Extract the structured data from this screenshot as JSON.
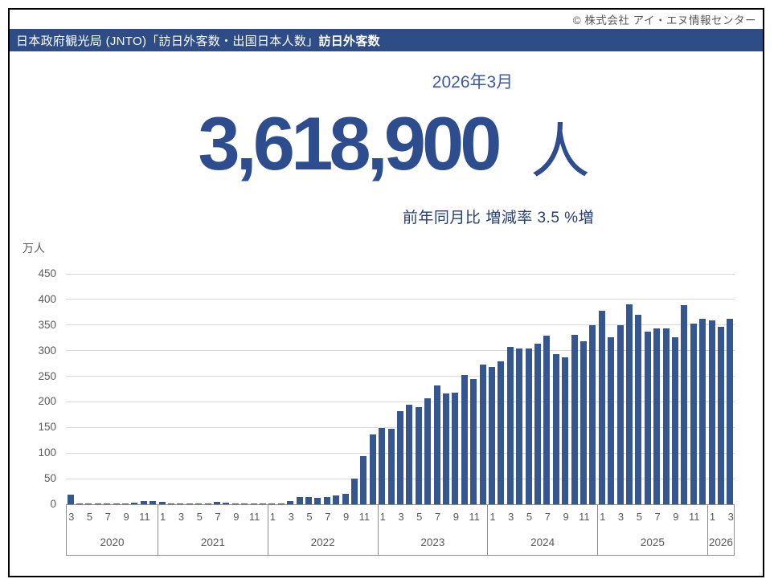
{
  "window": {
    "copyright": "© 株式会社 アイ・エヌ情報センター"
  },
  "header": {
    "source_label": "日本政府観光局 (JNTO)「訪日外客数・出国日本人数」",
    "metric_label": "訪日外客数"
  },
  "headline": {
    "period": "2026年3月",
    "value": "3,618,900",
    "unit": "人",
    "comparison": "前年同月比 増減率 3.5 %増"
  },
  "chart_data": {
    "type": "bar",
    "title": "訪日外客数",
    "ylabel": "万人",
    "ylim": [
      0,
      450
    ],
    "ytick_interval": 50,
    "yticks": [
      0,
      50,
      100,
      150,
      200,
      250,
      300,
      350,
      400,
      450
    ],
    "grid": true,
    "bar_color": "#35568f",
    "month_ticks_shown": [
      1,
      3,
      5,
      7,
      9,
      11
    ],
    "groups": [
      {
        "year": "2020",
        "months": [
          3,
          4,
          5,
          6,
          7,
          8,
          9,
          10,
          11,
          12
        ],
        "values": [
          19.4,
          0.3,
          0.2,
          0.3,
          0.4,
          0.9,
          1.4,
          2.7,
          5.7,
          5.9
        ]
      },
      {
        "year": "2021",
        "months": [
          1,
          2,
          3,
          4,
          5,
          6,
          7,
          8,
          9,
          10,
          11,
          12
        ],
        "values": [
          4.7,
          0.7,
          1.2,
          1.1,
          1.0,
          0.9,
          5.1,
          2.6,
          1.8,
          2.2,
          2.1,
          1.2
        ]
      },
      {
        "year": "2022",
        "months": [
          1,
          2,
          3,
          4,
          5,
          6,
          7,
          8,
          9,
          10,
          11,
          12
        ],
        "values": [
          1.8,
          1.7,
          6.6,
          13.9,
          14.7,
          12.0,
          14.4,
          16.9,
          20.7,
          49.9,
          93.5,
          137.0
        ]
      },
      {
        "year": "2023",
        "months": [
          1,
          2,
          3,
          4,
          5,
          6,
          7,
          8,
          9,
          10,
          11,
          12
        ],
        "values": [
          149.7,
          147.5,
          181.7,
          194.9,
          189.9,
          207.3,
          232.1,
          215.7,
          218.4,
          251.7,
          244.1,
          273.5
        ]
      },
      {
        "year": "2024",
        "months": [
          1,
          2,
          3,
          4,
          5,
          6,
          7,
          8,
          9,
          10,
          11,
          12
        ],
        "values": [
          268.8,
          278.8,
          308.1,
          304.3,
          304.0,
          313.6,
          329.3,
          293.3,
          287.2,
          331.2,
          318.7,
          348.9
        ]
      },
      {
        "year": "2025",
        "months": [
          1,
          2,
          3,
          4,
          5,
          6,
          7,
          8,
          9,
          10,
          11,
          12
        ],
        "values": [
          378.1,
          325.8,
          349.7,
          390.8,
          369.3,
          337.8,
          343.7,
          342.9,
          326.9,
          389.6,
          353.0,
          362.0
        ]
      },
      {
        "year": "2026",
        "months": [
          1,
          2,
          3
        ],
        "values": [
          359.0,
          346.0,
          361.9
        ]
      }
    ]
  }
}
